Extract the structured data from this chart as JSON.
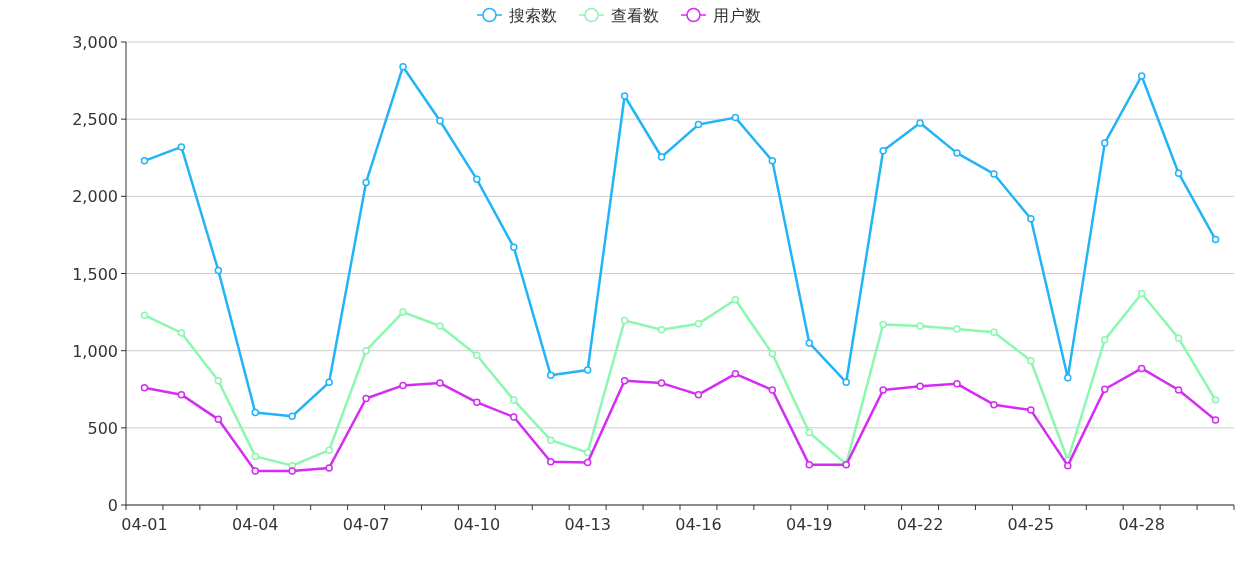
{
  "chart_data": {
    "type": "line",
    "categories": [
      "04-01",
      null,
      null,
      "04-04",
      null,
      null,
      "04-07",
      null,
      null,
      "04-10",
      null,
      null,
      "04-13",
      null,
      null,
      "04-16",
      null,
      null,
      "04-19",
      null,
      null,
      "04-22",
      null,
      null,
      "04-25",
      null,
      null,
      "04-28",
      null,
      null
    ],
    "series": [
      {
        "name": "搜索数",
        "color": "#22b4f7",
        "values": [
          2230,
          2320,
          1520,
          600,
          575,
          795,
          2090,
          2840,
          2490,
          2110,
          1670,
          840,
          875,
          2650,
          2255,
          2465,
          2510,
          2230,
          1050,
          795,
          2295,
          2475,
          2280,
          2145,
          1855,
          825,
          2345,
          2780,
          2150,
          1720
        ]
      },
      {
        "name": "查看数",
        "color": "#8cf7b0",
        "values": [
          1230,
          1115,
          805,
          315,
          255,
          355,
          1000,
          1250,
          1160,
          970,
          680,
          420,
          340,
          1195,
          1135,
          1175,
          1330,
          980,
          470,
          265,
          1170,
          1160,
          1140,
          1120,
          935,
          290,
          1070,
          1370,
          1080,
          680
        ]
      },
      {
        "name": "用户数",
        "color": "#d42cf2",
        "values": [
          760,
          715,
          555,
          220,
          220,
          240,
          690,
          775,
          790,
          665,
          570,
          280,
          275,
          805,
          790,
          715,
          850,
          745,
          260,
          260,
          745,
          770,
          785,
          650,
          615,
          255,
          750,
          885,
          745,
          550
        ]
      }
    ],
    "ylim": [
      0,
      3000
    ],
    "yticks": [
      0,
      500,
      {
        "value": 1000,
        "label": "1,000"
      },
      {
        "value": 1500,
        "label": "1,500"
      },
      {
        "value": 2000,
        "label": "2,000"
      },
      {
        "value": 2500,
        "label": "2,500"
      },
      {
        "value": 3000,
        "label": "3,000"
      }
    ],
    "grid": "y",
    "legend": "top",
    "marker": "circle",
    "line_style": "solid"
  }
}
